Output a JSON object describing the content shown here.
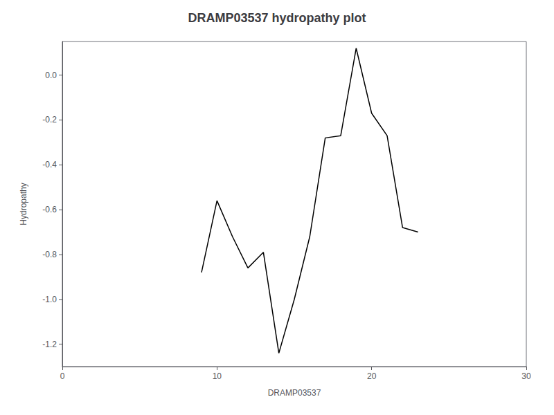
{
  "chart_data": {
    "type": "line",
    "title": "DRAMP03537 hydropathy plot",
    "xlabel": "DRAMP03537",
    "ylabel": "Hydropathy",
    "x": [
      9,
      10,
      11,
      12,
      13,
      14,
      15,
      16,
      17,
      18,
      19,
      20,
      21,
      22,
      23
    ],
    "values": [
      -0.88,
      -0.56,
      -0.72,
      -0.86,
      -0.79,
      -1.24,
      -1.0,
      -0.72,
      -0.28,
      -0.27,
      0.12,
      -0.17,
      -0.27,
      -0.68,
      -0.7
    ],
    "color": "#000000",
    "xlim": [
      0,
      30
    ],
    "xticks": [
      0,
      10,
      20,
      30
    ],
    "ylim": [
      -1.3,
      0.15
    ],
    "yticks": [
      -1.2,
      {
        "value": -1.0,
        "label": "-1.0"
      },
      -0.8,
      -0.6,
      -0.4,
      -0.2,
      {
        "value": 0.0,
        "label": "0.0"
      }
    ],
    "grid": false
  }
}
